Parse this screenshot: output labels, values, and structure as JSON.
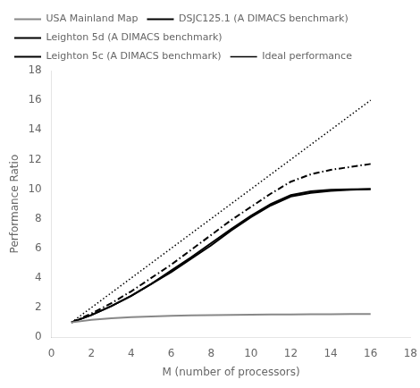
{
  "chart_data": {
    "type": "line",
    "xlabel": "M (number of processors)",
    "ylabel": "Performance Ratio",
    "x": [
      1,
      2,
      3,
      4,
      5,
      6,
      7,
      8,
      9,
      10,
      11,
      12,
      13,
      14,
      15,
      16
    ],
    "series": [
      {
        "name": "USA Mainland Map",
        "color": "#888888",
        "line_style": "solid",
        "values": [
          1.0,
          1.18,
          1.28,
          1.35,
          1.4,
          1.44,
          1.47,
          1.49,
          1.51,
          1.52,
          1.53,
          1.54,
          1.55,
          1.55,
          1.56,
          1.57
        ]
      },
      {
        "name": "DSJC125.1 (A DIMACS benchmark)",
        "color": "#000000",
        "line_style": "solid",
        "values": [
          1.0,
          1.5,
          2.1,
          2.8,
          3.6,
          4.4,
          5.3,
          6.2,
          7.2,
          8.1,
          8.9,
          9.5,
          9.75,
          9.88,
          9.95,
          10.0
        ]
      },
      {
        "name": "Leighton 5d (A DIMACS benchmark)",
        "color": "#000000",
        "line_style": "dashdot",
        "values": [
          1.0,
          1.6,
          2.3,
          3.1,
          4.0,
          4.9,
          5.9,
          6.9,
          7.9,
          8.8,
          9.7,
          10.5,
          11.0,
          11.3,
          11.5,
          11.7
        ]
      },
      {
        "name": "Leighton 5c (A DIMACS benchmark)",
        "color": "#000000",
        "line_style": "solid",
        "values": [
          1.0,
          1.5,
          2.1,
          2.8,
          3.6,
          4.5,
          5.4,
          6.35,
          7.3,
          8.2,
          9.0,
          9.6,
          9.85,
          9.95,
          9.98,
          10.0
        ]
      },
      {
        "name": "Ideal performance",
        "color": "#000000",
        "line_style": "dotted",
        "values": [
          1.0,
          2.0,
          3.0,
          4.0,
          5.0,
          6.0,
          7.0,
          8.0,
          9.0,
          10.0,
          11.0,
          12.0,
          13.0,
          14.0,
          15.0,
          16.0
        ]
      }
    ],
    "xlim": [
      0,
      18
    ],
    "ylim": [
      0,
      18
    ],
    "xticks": [
      0,
      2,
      4,
      6,
      8,
      10,
      12,
      14,
      16,
      18
    ],
    "yticks": [
      0,
      2,
      4,
      6,
      8,
      10,
      12,
      14,
      16,
      18
    ],
    "legend": "upper left",
    "grid": false
  }
}
